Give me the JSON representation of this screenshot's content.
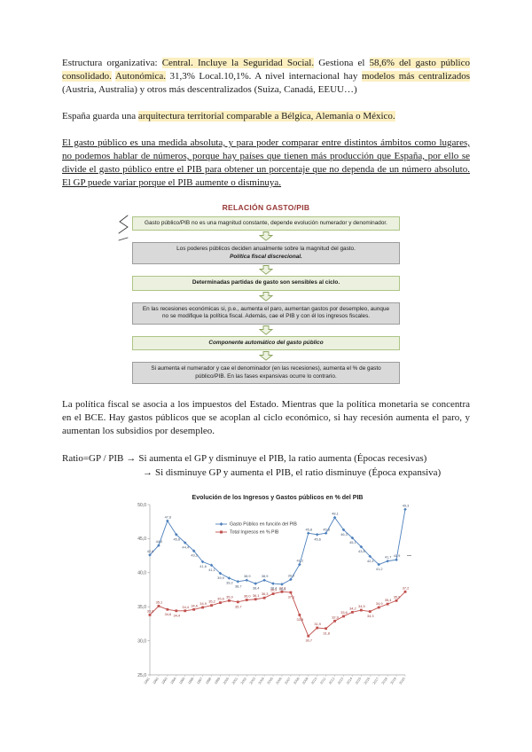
{
  "paragraphs": {
    "estructura": {
      "segments": [
        {
          "text": "Estructura organizativa: ",
          "hl": false
        },
        {
          "text": "Central. Incluye la Seguridad Social.",
          "hl": true
        },
        {
          "text": " Gestiona el ",
          "hl": false
        },
        {
          "text": "58,6% del gasto público consolidado.",
          "hl": true
        },
        {
          "text": " ",
          "hl": false
        },
        {
          "text": "Autonómica.",
          "hl": true
        },
        {
          "text": " 31,3% Local.10,1%. A nivel internacional hay ",
          "hl": false
        },
        {
          "text": "modelos más centralizados",
          "hl": true
        },
        {
          "text": " (Austria, Australia) y otros más descentralizados (Suiza, Canadá, EEUU…)",
          "hl": false
        }
      ]
    },
    "espana": {
      "segments": [
        {
          "text": "España guarda una ",
          "hl": false
        },
        {
          "text": "arquitectura territorial comparable a Bélgica, Alemania o México.",
          "hl": true
        }
      ]
    },
    "gasto": {
      "text": "El gasto público es una medida absoluta, y para poder comparar entre distintos ámbitos como lugares, no podemos hablar de números, porque hay países que tienen más producción que España, por ello se divide el gasto público entre el PIB para obtener un porcentaje que no dependa de un número absoluto. El GP puede variar porque el PIB aumente o disminuya."
    },
    "politica": {
      "text": "La política fiscal se asocia a los impuestos del Estado. Mientras que la política monetaria se concentra en el BCE. Hay gastos públicos que se acoplan al ciclo económico, si hay recesión aumenta el paro, y aumentan los subsidios por desempleo."
    }
  },
  "ratio": {
    "prefix": "Ratio=GP / PIB",
    "arrow": "→",
    "line1": "Si aumenta el GP y disminuye el PIB, la ratio aumenta (Épocas recesivas)",
    "line2": "Si disminuye GP y aumenta el PIB, el ratio disminuye (Época expansiva)"
  },
  "diagram": {
    "title": "RELACIÓN GASTO/PIB",
    "colors": {
      "green_fill": "#ebf1de",
      "gray_fill": "#d9d9d9",
      "arrow_stroke": "#8aa45e",
      "title": "#963634"
    },
    "boxes": [
      {
        "variant": "green",
        "segments": [
          {
            "text": "Gasto público/PIB no es una magnitud constante, depende evolución numerador y denominador.",
            "bold": false,
            "italic": false,
            "break_before": false
          }
        ]
      },
      {
        "variant": "gray",
        "segments": [
          {
            "text": "Los poderes públicos deciden anualmente sobre la magnitud del gasto.",
            "bold": false,
            "italic": false,
            "break_before": false
          },
          {
            "text": "Política fiscal discrecional.",
            "bold": true,
            "italic": true,
            "break_before": true
          }
        ]
      },
      {
        "variant": "green",
        "segments": [
          {
            "text": "Determinadas partidas de gasto son sensibles al ciclo.",
            "bold": true,
            "italic": false,
            "break_before": false
          }
        ]
      },
      {
        "variant": "gray",
        "segments": [
          {
            "text": "En las recesiones económicas si, p.e., aumenta el paro, aumentan gastos por desempleo, aunque no se modifique la política fiscal. Además, cae el PIB y con él los ingresos fiscales.",
            "bold": false,
            "italic": false,
            "break_before": false
          }
        ]
      },
      {
        "variant": "green",
        "segments": [
          {
            "text": "Componente automático del gasto público",
            "bold": true,
            "italic": true,
            "break_before": false
          }
        ]
      },
      {
        "variant": "gray",
        "segments": [
          {
            "text": "Si aumenta el numerador y cae el denominador (en las recesiones), aumenta el % de gasto público/PIB. En las fases expansivas ocurre lo contrario.",
            "bold": false,
            "italic": false,
            "break_before": false
          }
        ]
      }
    ]
  },
  "chart_data": {
    "type": "line",
    "title": "Evolución de los Ingresos y Gastos públicos en % del PIB",
    "categories": [
      "1991",
      "1992",
      "1993",
      "1994",
      "1995",
      "1996",
      "1997",
      "1998",
      "1999",
      "2000",
      "2001",
      "2002",
      "2003",
      "2004",
      "2005",
      "2006",
      "2007",
      "2008",
      "2009",
      "2010",
      "2011",
      "2012",
      "2013",
      "2014",
      "2015",
      "2016",
      "2017",
      "2018",
      "2019",
      "2020"
    ],
    "series": [
      {
        "name": "Gasto Público en función del PIB",
        "color": "#4F81BD",
        "label_color": "#44546a",
        "marker": "diamond",
        "values": [
          42.6,
          44.0,
          47.6,
          45.6,
          44.4,
          43.2,
          41.6,
          41.1,
          39.9,
          39.2,
          38.7,
          38.9,
          38.4,
          38.9,
          38.4,
          38.3,
          39.0,
          41.2,
          45.8,
          45.6,
          45.8,
          48.1,
          46.3,
          45.1,
          43.8,
          42.4,
          41.2,
          41.7,
          41.9,
          49.3
        ]
      },
      {
        "name": "Total Ingresos en % PIB",
        "color": "#C0504D",
        "label_color": "#943634",
        "marker": "square",
        "values": [
          33.8,
          35.1,
          34.6,
          34.4,
          34.4,
          34.6,
          34.9,
          35.2,
          35.6,
          35.9,
          35.7,
          36.0,
          36.1,
          36.3,
          36.9,
          37.2,
          37.1,
          33.8,
          30.7,
          31.9,
          31.8,
          32.9,
          33.6,
          34.2,
          34.5,
          34.3,
          34.9,
          35.4,
          35.9,
          37.2
        ]
      }
    ],
    "xlabel": "",
    "ylabel": "",
    "ylim": [
      25,
      50
    ],
    "yticks": [
      50,
      45,
      40,
      35,
      30,
      25
    ],
    "ytick_format": "comma-decimal",
    "grid": false,
    "legend_position": "top-center-inside",
    "data_labels": true
  }
}
